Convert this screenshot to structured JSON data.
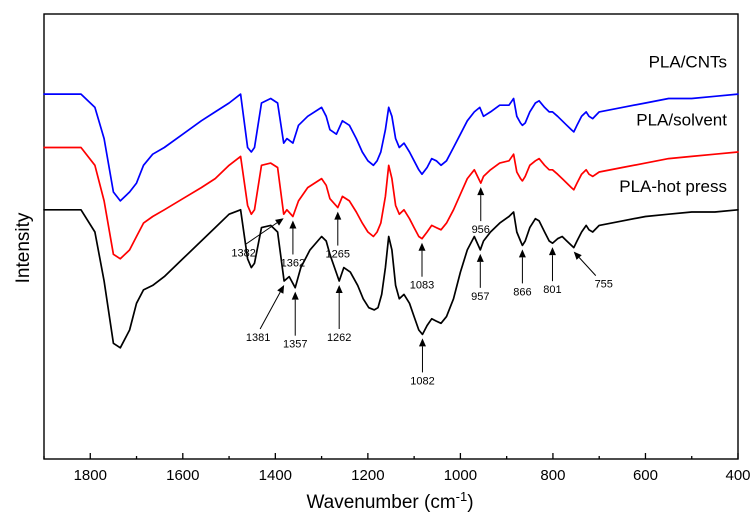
{
  "chart_data": {
    "type": "line",
    "title": "",
    "xlabel": "Wavenumber (cm",
    "xlabel_sup": "-1",
    "xlabel_close": ")",
    "ylabel": "Intensity",
    "xlim": [
      1900,
      400
    ],
    "x_reversed": true,
    "ylim": [
      0,
      1
    ],
    "y_ticks_shown": false,
    "grid": false,
    "x_ticks": [
      1800,
      1600,
      1400,
      1200,
      1000,
      800,
      600,
      400
    ],
    "x_tick_labels": [
      "1800",
      "1600",
      "1400",
      "1200",
      "1000",
      "800",
      "600",
      "400"
    ],
    "series": [
      {
        "name": "PLA/CNTs",
        "color": "#0000ff",
        "x": [
          1900,
          1820,
          1790,
          1770,
          1750,
          1735,
          1715,
          1700,
          1685,
          1665,
          1640,
          1600,
          1560,
          1530,
          1500,
          1475,
          1460,
          1452,
          1445,
          1430,
          1410,
          1395,
          1382,
          1375,
          1362,
          1350,
          1330,
          1300,
          1290,
          1282,
          1268,
          1255,
          1240,
          1225,
          1212,
          1200,
          1188,
          1180,
          1172,
          1162,
          1155,
          1148,
          1140,
          1132,
          1122,
          1110,
          1100,
          1090,
          1083,
          1072,
          1062,
          1052,
          1042,
          1030,
          1015,
          1000,
          985,
          970,
          958,
          950,
          935,
          915,
          895,
          885,
          878,
          870,
          866,
          860,
          850,
          838,
          830,
          818,
          808,
          801,
          790,
          780,
          770,
          760,
          755,
          748,
          738,
          728,
          722,
          714,
          700,
          650,
          600,
          550,
          500,
          450,
          400
        ],
        "y": [
          0.82,
          0.82,
          0.79,
          0.72,
          0.6,
          0.58,
          0.6,
          0.62,
          0.66,
          0.685,
          0.7,
          0.73,
          0.76,
          0.78,
          0.8,
          0.82,
          0.7,
          0.69,
          0.7,
          0.8,
          0.81,
          0.8,
          0.71,
          0.72,
          0.71,
          0.75,
          0.77,
          0.79,
          0.77,
          0.74,
          0.73,
          0.76,
          0.75,
          0.72,
          0.69,
          0.67,
          0.66,
          0.67,
          0.69,
          0.74,
          0.79,
          0.77,
          0.72,
          0.7,
          0.71,
          0.69,
          0.67,
          0.65,
          0.64,
          0.655,
          0.675,
          0.67,
          0.66,
          0.67,
          0.7,
          0.73,
          0.76,
          0.78,
          0.79,
          0.77,
          0.78,
          0.795,
          0.795,
          0.81,
          0.77,
          0.755,
          0.75,
          0.755,
          0.78,
          0.8,
          0.805,
          0.79,
          0.78,
          0.78,
          0.77,
          0.76,
          0.75,
          0.74,
          0.735,
          0.75,
          0.77,
          0.78,
          0.77,
          0.765,
          0.78,
          0.79,
          0.8,
          0.81,
          0.81,
          0.815,
          0.82
        ]
      },
      {
        "name": "PLA/solvent",
        "color": "#ff0000",
        "x": [
          1900,
          1820,
          1790,
          1770,
          1750,
          1735,
          1715,
          1700,
          1685,
          1665,
          1640,
          1600,
          1560,
          1530,
          1500,
          1475,
          1460,
          1452,
          1445,
          1430,
          1410,
          1395,
          1382,
          1375,
          1362,
          1350,
          1330,
          1300,
          1290,
          1282,
          1265,
          1255,
          1240,
          1225,
          1212,
          1200,
          1188,
          1180,
          1172,
          1162,
          1155,
          1148,
          1140,
          1132,
          1122,
          1110,
          1100,
          1090,
          1083,
          1072,
          1062,
          1052,
          1042,
          1030,
          1015,
          1000,
          985,
          970,
          956,
          950,
          935,
          915,
          895,
          885,
          878,
          870,
          866,
          860,
          850,
          838,
          830,
          818,
          808,
          801,
          790,
          780,
          770,
          760,
          755,
          748,
          738,
          728,
          722,
          714,
          700,
          650,
          600,
          550,
          500,
          450,
          400
        ],
        "y": [
          0.7,
          0.7,
          0.66,
          0.58,
          0.46,
          0.45,
          0.47,
          0.5,
          0.53,
          0.545,
          0.56,
          0.585,
          0.61,
          0.63,
          0.66,
          0.68,
          0.57,
          0.55,
          0.56,
          0.66,
          0.665,
          0.655,
          0.55,
          0.56,
          0.545,
          0.58,
          0.61,
          0.63,
          0.615,
          0.585,
          0.565,
          0.59,
          0.58,
          0.555,
          0.53,
          0.51,
          0.5,
          0.51,
          0.53,
          0.59,
          0.66,
          0.63,
          0.57,
          0.55,
          0.56,
          0.54,
          0.52,
          0.5,
          0.495,
          0.51,
          0.525,
          0.52,
          0.515,
          0.53,
          0.56,
          0.595,
          0.63,
          0.65,
          0.62,
          0.635,
          0.65,
          0.665,
          0.67,
          0.685,
          0.645,
          0.63,
          0.625,
          0.635,
          0.66,
          0.67,
          0.675,
          0.66,
          0.65,
          0.65,
          0.64,
          0.63,
          0.62,
          0.61,
          0.605,
          0.62,
          0.64,
          0.65,
          0.64,
          0.635,
          0.645,
          0.655,
          0.665,
          0.675,
          0.68,
          0.685,
          0.69
        ]
      },
      {
        "name": "PLA-hot press",
        "color": "#000000",
        "x": [
          1900,
          1820,
          1790,
          1770,
          1750,
          1735,
          1715,
          1700,
          1685,
          1665,
          1640,
          1600,
          1560,
          1530,
          1500,
          1475,
          1460,
          1452,
          1445,
          1430,
          1410,
          1395,
          1381,
          1370,
          1357,
          1345,
          1325,
          1300,
          1290,
          1282,
          1262,
          1252,
          1238,
          1222,
          1210,
          1198,
          1186,
          1178,
          1170,
          1162,
          1155,
          1148,
          1140,
          1132,
          1122,
          1110,
          1100,
          1090,
          1082,
          1072,
          1062,
          1052,
          1042,
          1030,
          1015,
          1000,
          985,
          970,
          957,
          950,
          935,
          915,
          895,
          885,
          878,
          870,
          866,
          860,
          850,
          838,
          830,
          818,
          808,
          801,
          790,
          780,
          770,
          760,
          755,
          748,
          738,
          728,
          722,
          714,
          700,
          650,
          600,
          550,
          500,
          450,
          400
        ],
        "y": [
          0.56,
          0.56,
          0.51,
          0.4,
          0.26,
          0.25,
          0.29,
          0.35,
          0.38,
          0.39,
          0.41,
          0.45,
          0.49,
          0.52,
          0.55,
          0.56,
          0.45,
          0.43,
          0.44,
          0.52,
          0.525,
          0.51,
          0.4,
          0.41,
          0.385,
          0.43,
          0.47,
          0.5,
          0.49,
          0.46,
          0.4,
          0.43,
          0.42,
          0.39,
          0.36,
          0.34,
          0.335,
          0.34,
          0.37,
          0.43,
          0.5,
          0.47,
          0.39,
          0.36,
          0.37,
          0.35,
          0.32,
          0.29,
          0.28,
          0.3,
          0.315,
          0.31,
          0.305,
          0.32,
          0.36,
          0.42,
          0.47,
          0.5,
          0.47,
          0.49,
          0.51,
          0.53,
          0.545,
          0.555,
          0.51,
          0.49,
          0.48,
          0.49,
          0.52,
          0.54,
          0.535,
          0.51,
          0.49,
          0.485,
          0.495,
          0.5,
          0.49,
          0.48,
          0.475,
          0.49,
          0.51,
          0.525,
          0.515,
          0.51,
          0.525,
          0.535,
          0.545,
          0.55,
          0.555,
          0.555,
          0.56
        ]
      }
    ],
    "series_labels": [
      {
        "text": "PLA/CNTs",
        "y": 0.88
      },
      {
        "text": "PLA/solvent",
        "y": 0.75
      },
      {
        "text": "PLA-hot press",
        "y": 0.6
      }
    ],
    "annotations": [
      {
        "label": "1382",
        "x": 1382,
        "series": 1,
        "side": "below",
        "dx": -38,
        "dy": 26
      },
      {
        "label": "1362",
        "x": 1362,
        "series": 1,
        "side": "below",
        "dx": 0,
        "dy": 34
      },
      {
        "label": "1265",
        "x": 1265,
        "series": 1,
        "side": "below",
        "dx": 0,
        "dy": 34
      },
      {
        "label": "1083",
        "x": 1083,
        "series": 1,
        "side": "below",
        "dx": 0,
        "dy": 34
      },
      {
        "label": "956",
        "x": 956,
        "series": 1,
        "side": "below",
        "dx": 0,
        "dy": 34
      },
      {
        "label": "1381",
        "x": 1381,
        "series": 2,
        "side": "below",
        "dx": -24,
        "dy": 44
      },
      {
        "label": "1357",
        "x": 1357,
        "series": 2,
        "side": "below",
        "dx": 0,
        "dy": 44
      },
      {
        "label": "1262",
        "x": 1262,
        "series": 2,
        "side": "below",
        "dx": 0,
        "dy": 44
      },
      {
        "label": "1082",
        "x": 1082,
        "series": 2,
        "side": "below",
        "dx": 0,
        "dy": 34
      },
      {
        "label": "957",
        "x": 957,
        "series": 2,
        "side": "below",
        "dx": 0,
        "dy": 34
      },
      {
        "label": "866",
        "x": 866,
        "series": 2,
        "side": "below",
        "dx": 0,
        "dy": 34
      },
      {
        "label": "801",
        "x": 801,
        "series": 2,
        "side": "below",
        "dx": 0,
        "dy": 34
      },
      {
        "label": "755",
        "x": 755,
        "series": 2,
        "side": "below",
        "dx": 22,
        "dy": 24
      }
    ]
  }
}
